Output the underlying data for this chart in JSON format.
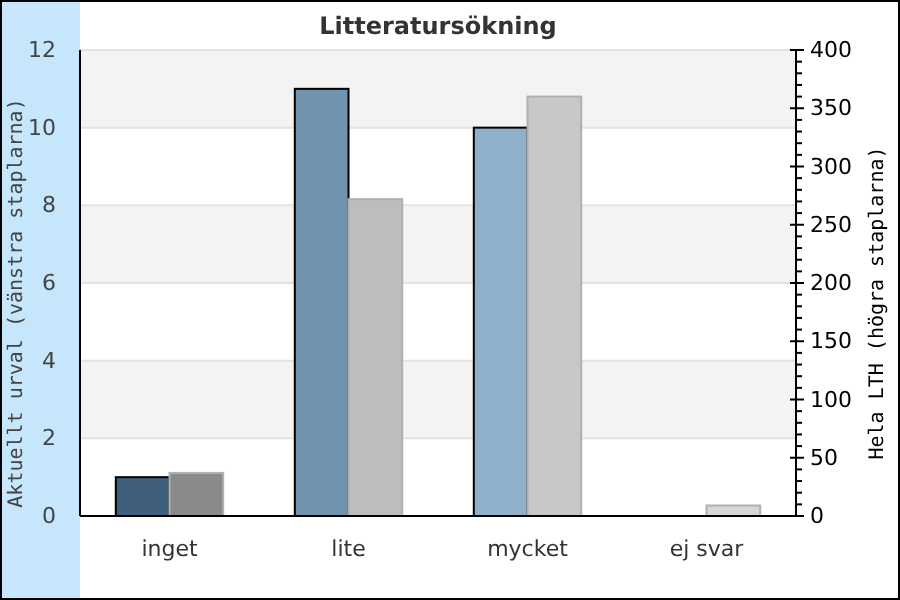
{
  "chart_data": {
    "type": "bar",
    "title": "Litteratursökning",
    "ylabel": "Aktuellt urval (vänstra staplarna)",
    "y2label": "Hela LTH (högra staplarna)",
    "categories": [
      "inget",
      "lite",
      "mycket",
      "ej svar"
    ],
    "series": [
      {
        "colors": [
          "#3f5f7d",
          "#7293ae",
          "#8fb0cb",
          "#8fb0cb"
        ],
        "values": [
          1,
          11,
          10,
          0
        ]
      },
      {
        "colors": [
          "#8a8a8a",
          "#bdbdbd",
          "#c8c8c8",
          "#d6d6d6"
        ],
        "values": [
          37,
          272,
          360,
          9
        ],
        "axis": "y2"
      }
    ],
    "ylim": [
      0,
      12
    ],
    "yticks": [
      0,
      2,
      4,
      6,
      8,
      10,
      12
    ],
    "y2lim": [
      0,
      400
    ],
    "y2ticks": [
      0,
      {
        "value": 10,
        "label": null
      },
      {
        "value": 20,
        "label": null
      },
      {
        "value": 30,
        "label": null
      },
      {
        "value": 40,
        "label": null
      },
      50,
      {
        "value": 60,
        "label": null
      },
      {
        "value": 70,
        "label": null
      },
      {
        "value": 80,
        "label": null
      },
      {
        "value": 90,
        "label": null
      },
      100,
      {
        "value": 110,
        "label": null
      },
      {
        "value": 120,
        "label": null
      },
      {
        "value": 130,
        "label": null
      },
      {
        "value": 140,
        "label": null
      },
      150,
      {
        "value": 160,
        "label": null
      },
      {
        "value": 170,
        "label": null
      },
      {
        "value": 180,
        "label": null
      },
      {
        "value": 190,
        "label": null
      },
      200,
      {
        "value": 210,
        "label": null
      },
      {
        "value": 220,
        "label": null
      },
      {
        "value": 230,
        "label": null
      },
      {
        "value": 240,
        "label": null
      },
      250,
      {
        "value": 260,
        "label": null
      },
      {
        "value": 270,
        "label": null
      },
      {
        "value": 280,
        "label": null
      },
      {
        "value": 290,
        "label": null
      },
      300,
      {
        "value": 310,
        "label": null
      },
      {
        "value": 320,
        "label": null
      },
      {
        "value": 330,
        "label": null
      },
      {
        "value": 340,
        "label": null
      },
      350,
      {
        "value": 360,
        "label": null
      },
      {
        "value": 370,
        "label": null
      },
      {
        "value": 380,
        "label": null
      },
      {
        "value": 390,
        "label": null
      },
      400
    ],
    "grid": "y"
  }
}
